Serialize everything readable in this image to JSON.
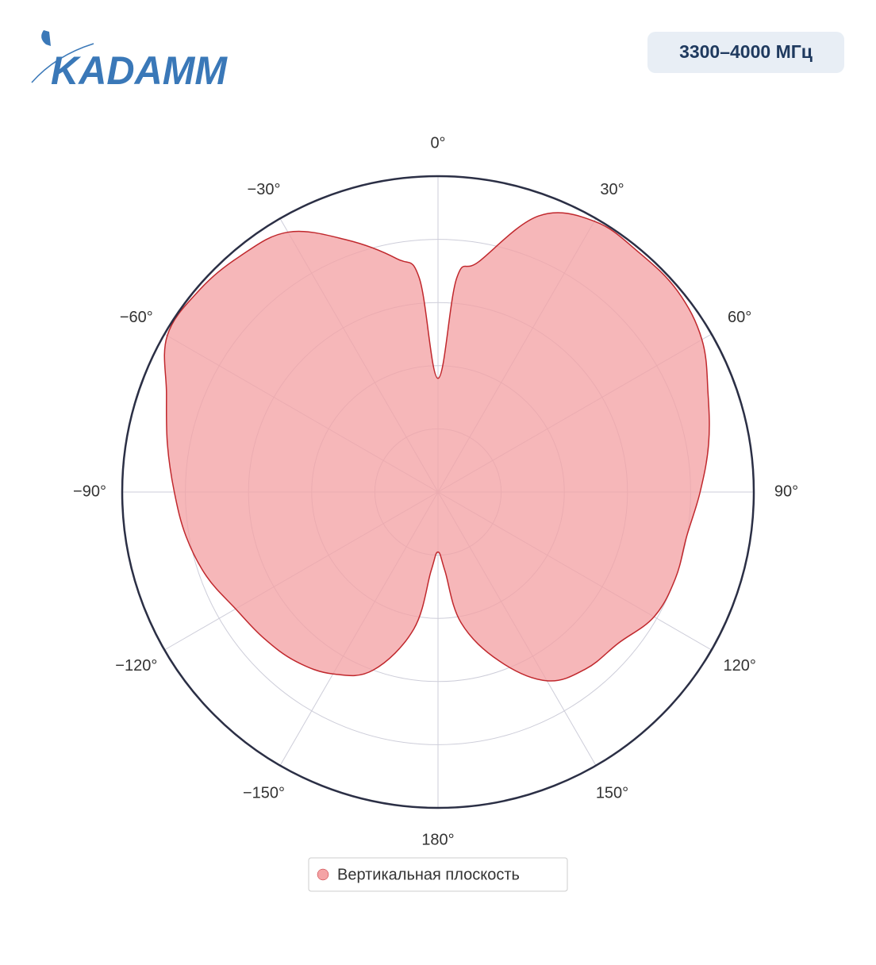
{
  "header": {
    "logo": "KADAMM",
    "badge": "3300–4000 МГц"
  },
  "chart_data": {
    "type": "polar",
    "theta": [
      -175,
      -170,
      -160,
      -150,
      -140,
      -130,
      -120,
      -110,
      -100,
      -90,
      -80,
      -70,
      -60,
      -50,
      -40,
      -30,
      -20,
      -10,
      -5,
      0,
      5,
      10,
      20,
      30,
      40,
      50,
      60,
      70,
      80,
      90,
      100,
      110,
      120,
      130,
      140,
      150,
      160,
      170,
      175,
      180
    ],
    "series": [
      {
        "name": "Вертикальная плоскость",
        "color": "#f4a3a5",
        "line_color": "#c0282d",
        "values": [
          0.25,
          0.44,
          0.6,
          0.665,
          0.7,
          0.72,
          0.74,
          0.78,
          0.81,
          0.835,
          0.87,
          0.915,
          0.99,
          0.99,
          0.975,
          0.95,
          0.85,
          0.75,
          0.68,
          0.36,
          0.68,
          0.74,
          0.93,
          0.99,
          0.99,
          0.99,
          0.965,
          0.91,
          0.87,
          0.83,
          0.8,
          0.8,
          0.79,
          0.745,
          0.73,
          0.69,
          0.57,
          0.42,
          0.25,
          0.19
        ]
      }
    ],
    "thetaticks": [
      {
        "value": 0,
        "label": "0°"
      },
      {
        "value": 30,
        "label": "30°"
      },
      {
        "value": 60,
        "label": "60°"
      },
      {
        "value": 90,
        "label": "90°"
      },
      {
        "value": 120,
        "label": "120°"
      },
      {
        "value": 150,
        "label": "150°"
      },
      {
        "value": 180,
        "label": "180°"
      },
      {
        "value": -150,
        "label": "−150°"
      },
      {
        "value": -120,
        "label": "−120°"
      },
      {
        "value": -90,
        "label": "−90°"
      },
      {
        "value": -60,
        "label": "−60°"
      },
      {
        "value": -30,
        "label": "−30°"
      }
    ],
    "rlim": [
      0,
      1
    ],
    "rticks": [
      0.2,
      0.4,
      0.6,
      0.8
    ],
    "grid": true,
    "legend": "bottom"
  }
}
